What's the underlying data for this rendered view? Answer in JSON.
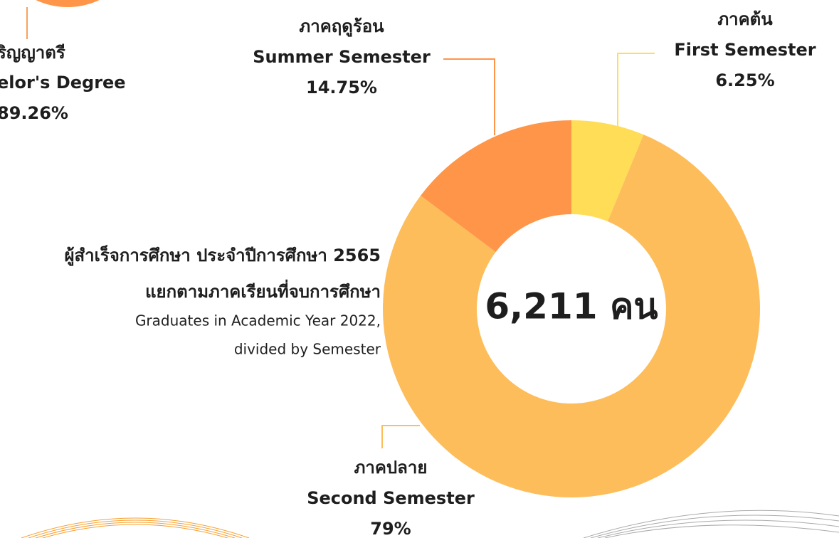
{
  "chart_data": {
    "type": "pie",
    "title": [
      "ผู้สำเร็จการศึกษา ประจำปีการศึกษา 2565",
      "แยกตามภาคเรียนที่จบการศึกษา"
    ],
    "subtitle": [
      "Graduates in Academic Year 2022,",
      "divided by Semester"
    ],
    "center_label": "6,211 คน",
    "categories": [
      "First Semester",
      "Second Semester",
      "Summer Semester"
    ],
    "categories_th": [
      "ภาคต้น",
      "ภาคปลาย",
      "ภาคฤดูร้อน"
    ],
    "values": [
      6.25,
      79,
      14.75
    ],
    "value_labels": [
      "6.25%",
      "79%",
      "14.75%"
    ],
    "colors": [
      "#ffdd57",
      "#fdbd5a",
      "#ff9548"
    ],
    "donut": true
  },
  "partial_label": {
    "lines": [
      "ริญญาตรี",
      "elor's Degree",
      "89.26%"
    ]
  }
}
